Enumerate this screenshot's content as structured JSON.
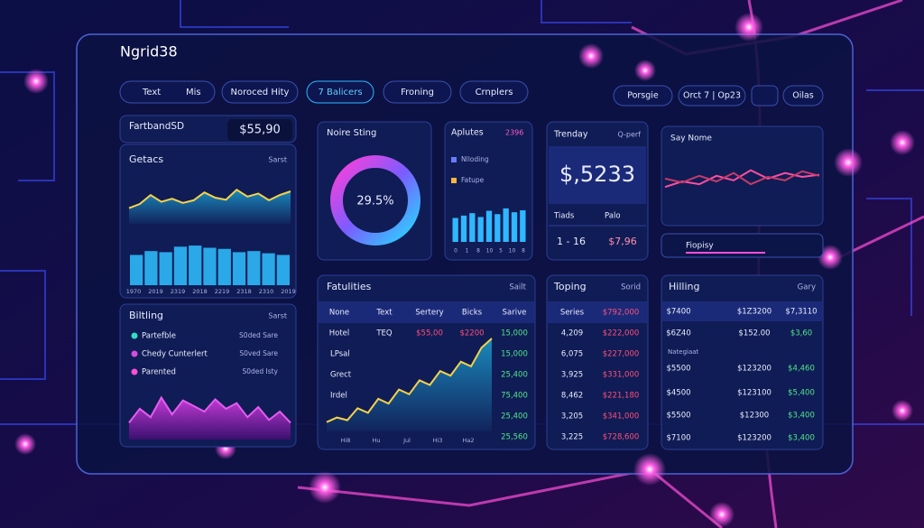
{
  "header": {
    "title": "Ngrid38"
  },
  "toolbar": {
    "left": [
      "Text",
      "Mis",
      "Noroced Hity",
      "7 Balicers",
      "Froning",
      "Crnplers"
    ],
    "right": [
      "Porsgie",
      "Orct 7 | Op23",
      "Oilas"
    ]
  },
  "fartband": {
    "title": "FartbandSD",
    "value": "$55,90"
  },
  "getacs": {
    "title": "Getacs",
    "menu": "Sarst",
    "line": [
      30,
      38,
      55,
      42,
      48,
      40,
      45,
      60,
      50,
      46,
      65,
      52,
      58,
      45,
      55,
      62
    ],
    "bars": [
      55,
      62,
      60,
      70,
      72,
      68,
      66,
      60,
      62,
      58,
      55
    ],
    "x_labels": [
      "1970",
      "2019",
      "2319",
      "2018",
      "2219",
      "2318",
      "2310",
      "2019"
    ]
  },
  "billing": {
    "title": "Biltling",
    "menu": "Sarst",
    "items": [
      {
        "name": "Partefble",
        "value": "S0ded Sare"
      },
      {
        "name": "Chedy Cunterlert",
        "value": "S0ved Sare"
      },
      {
        "name": "Parented",
        "value": "S0ded Isty"
      }
    ],
    "chart": [
      30,
      55,
      40,
      75,
      45,
      70,
      60,
      50,
      72,
      55,
      65,
      40,
      58,
      35,
      50,
      30
    ]
  },
  "donut": {
    "title": "Noire Sting",
    "center_label": "29.5%"
  },
  "aplutes": {
    "title": "Aplutes",
    "badge": "2396",
    "legend": [
      "Nlloding",
      "Fatupe"
    ],
    "bars": [
      50,
      55,
      60,
      52,
      65,
      58,
      70,
      62,
      66
    ],
    "x_labels": [
      "0",
      "1",
      "8",
      "10",
      "5",
      "10",
      "8"
    ]
  },
  "trenday": {
    "title": "Trenday",
    "menu": "Q-perf",
    "value": "$,5233",
    "columns": [
      "Tiads",
      "Palo"
    ],
    "row": [
      "1 - 16",
      "$7,96"
    ]
  },
  "saynome": {
    "title": "Say Nome",
    "line_a": [
      40,
      50,
      45,
      60,
      52,
      70,
      55,
      65,
      58,
      62
    ],
    "line_b": [
      55,
      48,
      60,
      50,
      65,
      45,
      58,
      52,
      68,
      60
    ],
    "search": "Fiopisy"
  },
  "fatulities": {
    "title": "Fatulities",
    "menu": "Sailt",
    "columns": [
      "None",
      "Text",
      "Sertery",
      "Bicks",
      "Sarive"
    ],
    "first_row": [
      "Hotel",
      "TEQ",
      "$55,00",
      "$2200"
    ],
    "row_labels": [
      "LPsal",
      "Grect",
      "Irdel"
    ],
    "last_col": [
      "15,000",
      "15,000",
      "25,400",
      "75,400",
      "25,400",
      "25,560"
    ],
    "line": [
      10,
      15,
      12,
      25,
      20,
      35,
      30,
      45,
      40,
      55,
      50,
      65,
      60,
      75,
      70,
      90,
      100
    ],
    "x_labels": [
      "Hi8",
      "Hu",
      "Jul",
      "Hi3",
      "Ha2"
    ]
  },
  "toping": {
    "title": "Toping",
    "menu": "Sorid",
    "columns": [
      "Series",
      "$792,000"
    ],
    "rows": [
      [
        "4,209",
        "$222,000"
      ],
      [
        "6,075",
        "$227,000"
      ],
      [
        "3,925",
        "$331,000"
      ],
      [
        "8,462",
        "$221,180"
      ],
      [
        "3,205",
        "$341,000"
      ],
      [
        "3,225",
        "$728,600"
      ]
    ]
  },
  "hilling": {
    "title": "Hilling",
    "menu": "Gary",
    "rows": [
      [
        "$7400",
        "$1Z3200",
        "$7,3110"
      ],
      [
        "$6Z40",
        "$152.00",
        "$3,60"
      ],
      [
        "$5500",
        "$123200",
        "$4,460"
      ],
      [
        "$4500",
        "$123100",
        "$5,400"
      ],
      [
        "$5500",
        "$12300",
        "$3,400"
      ],
      [
        "$7100",
        "$123200",
        "$3,400"
      ]
    ],
    "note": "Nategiaat"
  }
}
